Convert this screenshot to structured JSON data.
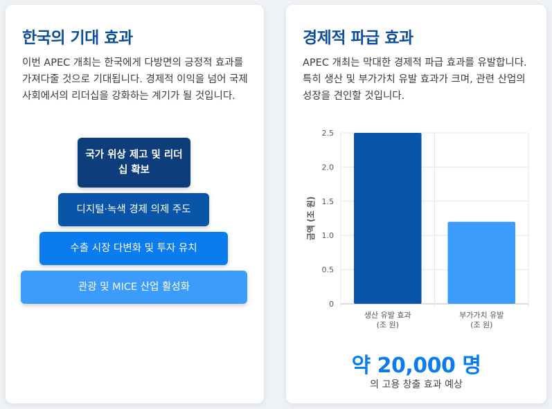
{
  "left_card": {
    "title": "한국의 기대 효과",
    "description": "이번 APEC 개최는 한국에게 다방면의 긍정적 효과를 가져다줄 것으로 기대됩니다. 경제적 이익을 넘어 국제 사회에서의 리더십을 강화하는 계기가 될 것입니다.",
    "pyramid": [
      "국가 위상 제고 및 리더십 확보",
      "디지털·녹색 경제 의제 주도",
      "수출 시장 다변화 및 투자 유치",
      "관광 및 MICE 산업 활성화"
    ],
    "pyramid_colors": [
      "#0d3d7a",
      "#0b55a8",
      "#0a7cf0",
      "#3b9cfb"
    ]
  },
  "right_card": {
    "title": "경제적 파급 효과",
    "description": "APEC 개최는 막대한 경제적 파급 효과를 유발합니다. 특히 생산 및 부가가치 유발 효과가 크며, 관련 산업의 성장을 견인할 것입니다.",
    "stat_value": "약 20,000 명",
    "stat_caption": "의 고용 창출 효과 예상"
  },
  "chart_data": {
    "type": "bar",
    "categories": [
      [
        "생산 유발 효과",
        "(조 원)"
      ],
      [
        "부가가치 유발",
        "(조 원)"
      ]
    ],
    "values": [
      2.5,
      1.2
    ],
    "colors": [
      "#0b55a8",
      "#3b9cfb"
    ],
    "ylabel": "금액 (조 원)",
    "ylim": [
      0,
      2.5
    ],
    "yticks": [
      "0",
      "0.5",
      "1.0",
      "1.5",
      "2.0",
      "2.5"
    ],
    "grid": true
  }
}
